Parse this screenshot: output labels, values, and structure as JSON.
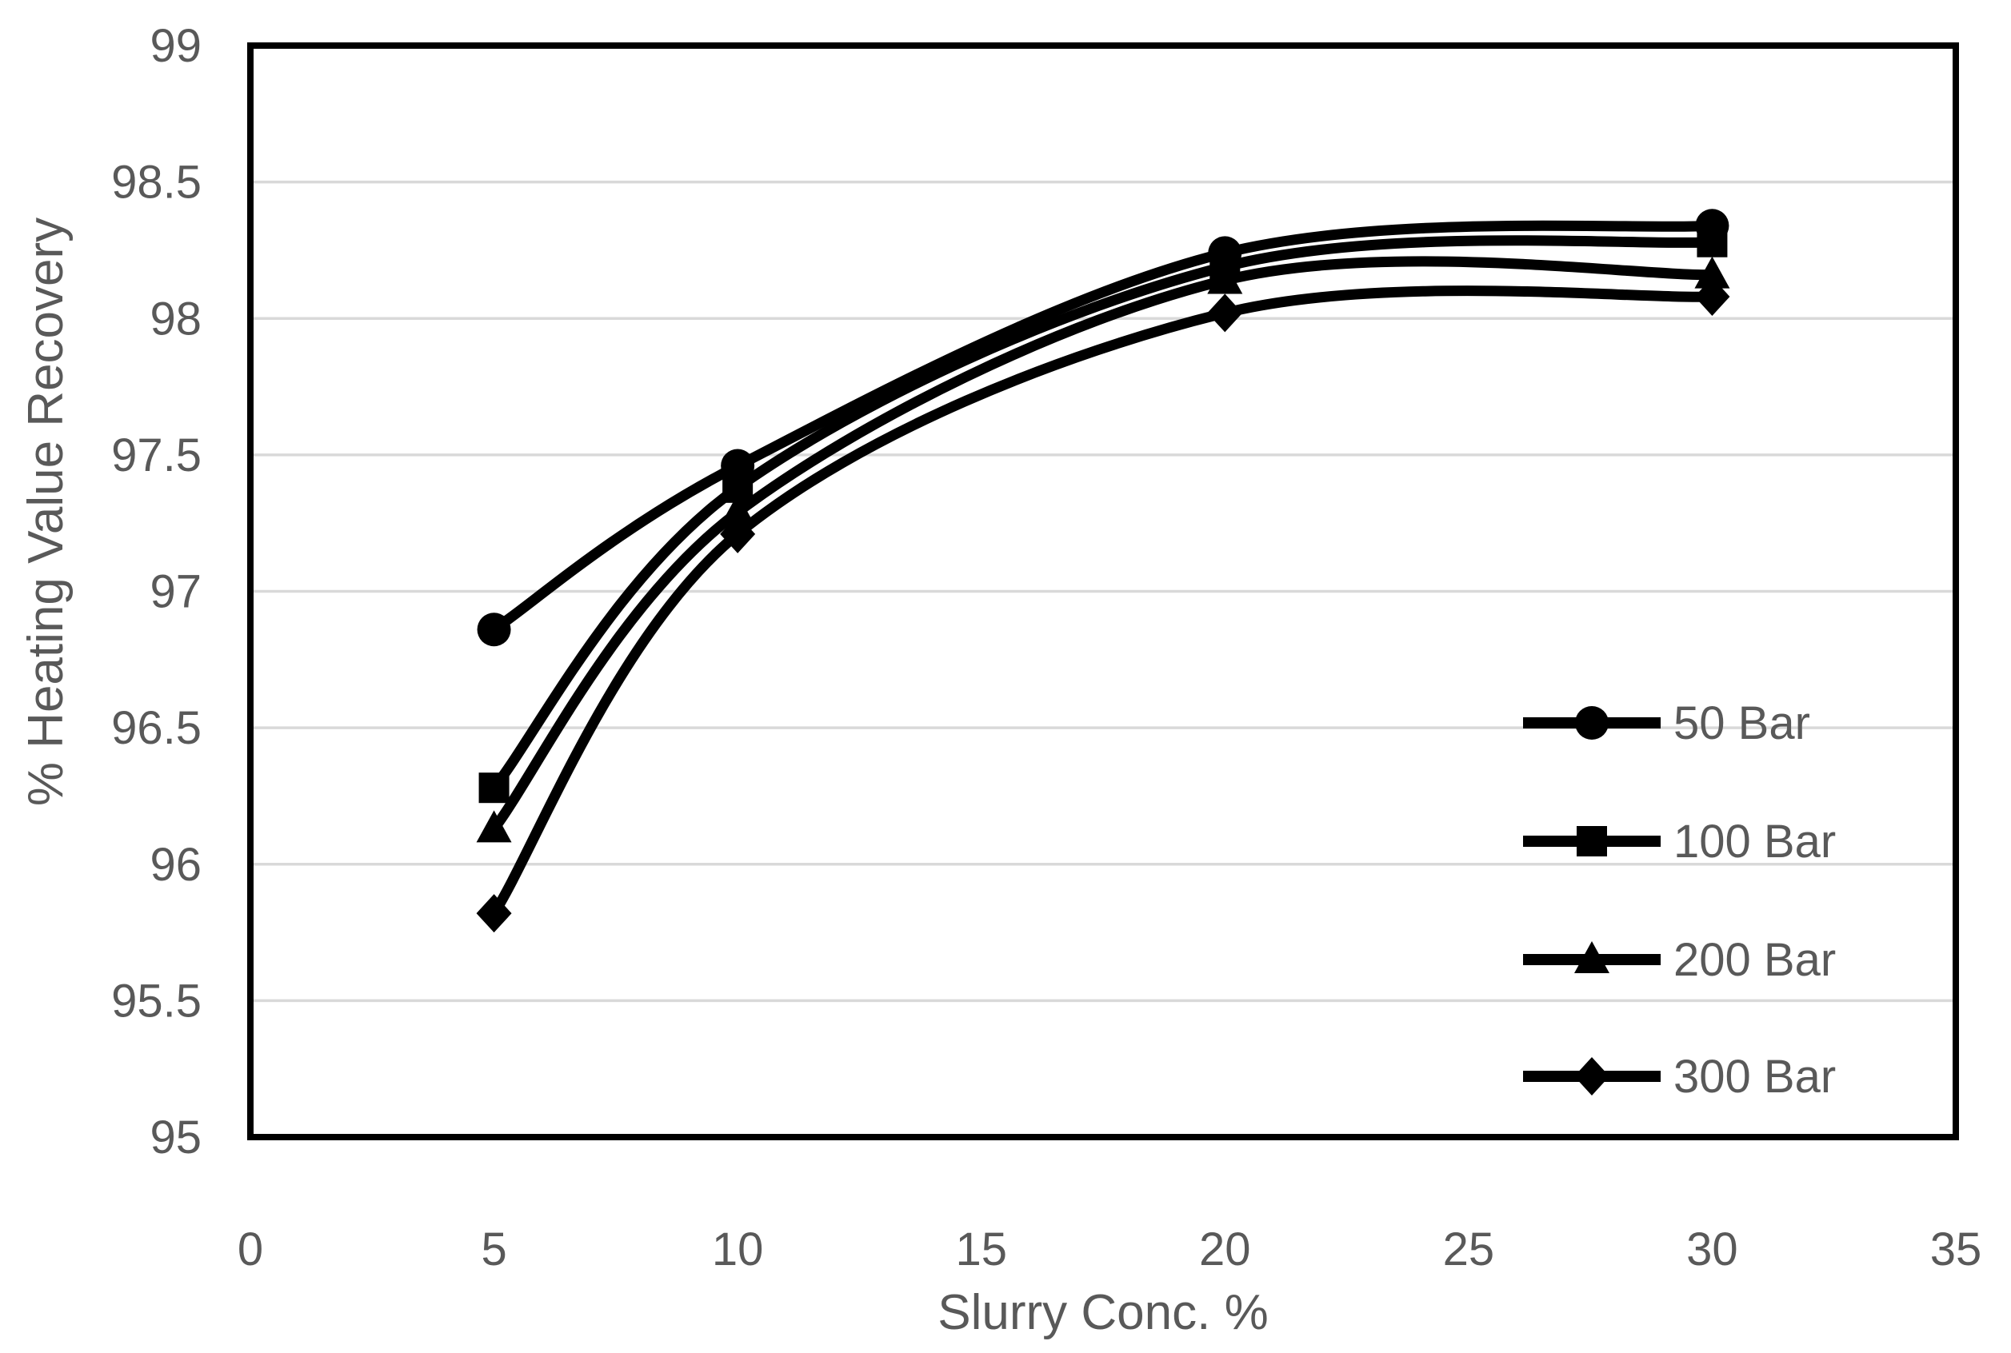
{
  "chart_data": {
    "type": "line",
    "title": "",
    "xlabel": "Slurry Conc. %",
    "ylabel": "% Heating Value Recovery",
    "x": [
      5,
      10,
      20,
      30
    ],
    "series": [
      {
        "name": "50 Bar",
        "marker": "circle",
        "values": [
          96.86,
          97.46,
          98.24,
          98.34
        ]
      },
      {
        "name": "100 Bar",
        "marker": "square",
        "values": [
          96.28,
          97.38,
          98.19,
          98.28
        ]
      },
      {
        "name": "200 Bar",
        "marker": "triangle",
        "values": [
          96.13,
          97.29,
          98.14,
          98.16
        ]
      },
      {
        "name": "300 Bar",
        "marker": "diamond",
        "values": [
          95.82,
          97.21,
          98.02,
          98.08
        ]
      }
    ],
    "xlim": [
      0,
      35
    ],
    "ylim": [
      95,
      99
    ],
    "xticks": [
      0,
      5,
      10,
      15,
      20,
      25,
      30,
      35
    ],
    "yticks": [
      95,
      95.5,
      96,
      96.5,
      97,
      97.5,
      98,
      98.5,
      99
    ],
    "grid": "horizontal-only",
    "curve": "smoothed",
    "legend": {
      "position": "inside-right",
      "entries": [
        "50 Bar",
        "100 Bar",
        "200 Bar",
        "300 Bar"
      ]
    },
    "colors": {
      "series": "#000000",
      "tick_labels": "#595959",
      "axis_titles": "#595959",
      "gridlines": "#D9D9D9",
      "plot_border": "#000000",
      "background": "#FFFFFF"
    }
  }
}
